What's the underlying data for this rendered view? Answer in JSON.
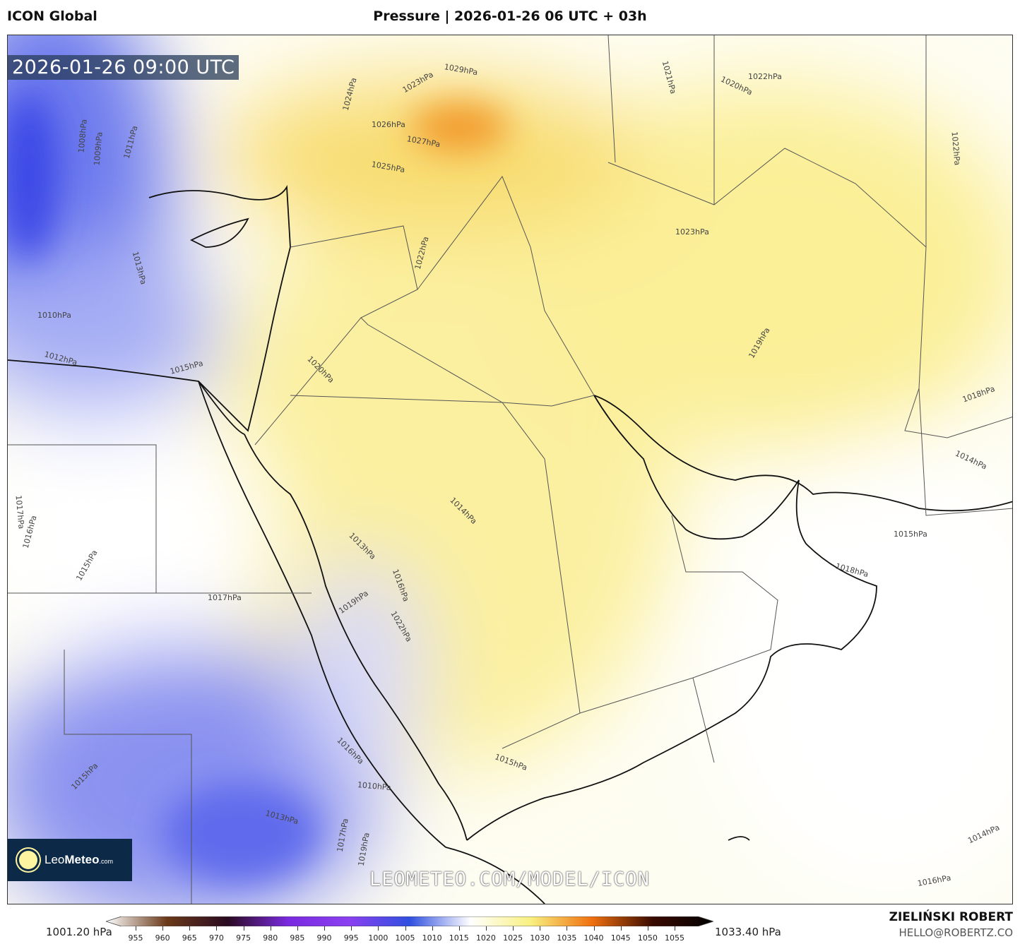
{
  "header": {
    "model": "ICON Global",
    "title": "Pressure | 2026-01-26 06 UTC + 03h"
  },
  "map": {
    "valid_time": "2026-01-26 09:00 UTC",
    "watermark": "LEOMETEO.COM/MODEL/ICON",
    "logo": {
      "prefix": "Leo",
      "bold": "Meteo",
      "suffix": ".com"
    },
    "isobar_labels": [
      "1022hPa",
      "1021hPa",
      "1020hPa",
      "1029hPa",
      "1023hPa",
      "1024hPa",
      "1026hPa",
      "1027hPa",
      "1025hPa",
      "1008hPa",
      "1011hPa",
      "1009hPa",
      "1013hPa",
      "1010hPa",
      "1012hPa",
      "1015hPa",
      "1020hPa",
      "1022hPa",
      "1023hPa",
      "1022hPa",
      "1019hPa",
      "1018hPa",
      "1014hPa",
      "1015hPa",
      "1018hPa",
      "1017hPa",
      "1016hPa",
      "1015hPa",
      "1017hPa",
      "1013hPa",
      "1019hPa",
      "1016hPa",
      "1022hPa",
      "1014hPa",
      "1015hPa",
      "1016hPa",
      "1010hPa",
      "1013hPa",
      "1017hPa",
      "1019hPa",
      "1015hPa",
      "1014hPa",
      "1016hPa"
    ],
    "colors": {
      "low": "#4a55e8",
      "neutral": "#ffffff",
      "high": "#f7e27a",
      "very_high": "#f08a1c"
    }
  },
  "colorbar": {
    "min_label": "1001.20 hPa",
    "max_label": "1033.40 hPa",
    "ticks": [
      "955",
      "960",
      "965",
      "970",
      "975",
      "980",
      "985",
      "990",
      "995",
      "1000",
      "1005",
      "1010",
      "1015",
      "1020",
      "1025",
      "1030",
      "1035",
      "1040",
      "1045",
      "1050",
      "1055"
    ],
    "stops": [
      "#ffffff",
      "#6b3a1a",
      "#2a0a20",
      "#7a2ae0",
      "#8a40f0",
      "#3050e0",
      "#ffffff",
      "#f8f080",
      "#f07010",
      "#3a0a00",
      "#000000"
    ]
  },
  "footer": {
    "author": "ZIELIŃSKI ROBERT",
    "email": "HELLO@ROBERTZ.CO"
  }
}
